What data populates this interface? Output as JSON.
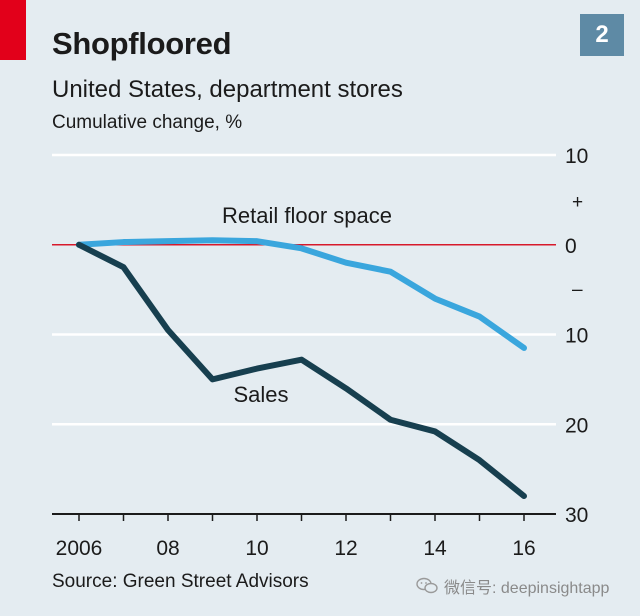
{
  "header": {
    "title": "Shopfloored",
    "badge": "2",
    "subtitle": "United States, department stores",
    "units": "Cumulative change, %"
  },
  "footer": {
    "source": "Source: Green Street Advisors",
    "watermark": "微信号: deepinsightapp"
  },
  "colors": {
    "background": "#e4ecf1",
    "accent": "#e2001a",
    "badge": "#5e8aa5",
    "retail_line": "#3aa6dd",
    "sales_line": "#173f4f",
    "gridline": "#ffffff",
    "zero_line": "#d7192b"
  },
  "chart_data": {
    "type": "line",
    "title": "Shopfloored",
    "subtitle": "United States, department stores",
    "ylabel": "Cumulative change, %",
    "xlabel": "",
    "x": [
      2006,
      2007,
      2008,
      2009,
      2010,
      2011,
      2012,
      2013,
      2014,
      2015,
      2016
    ],
    "xticks": [
      2006,
      2008,
      2010,
      2012,
      2014,
      2016
    ],
    "xtick_labels": [
      "2006",
      "08",
      "10",
      "12",
      "14",
      "16"
    ],
    "ylim": [
      -30,
      10
    ],
    "yticks": [
      10,
      0,
      -10,
      -20,
      -30
    ],
    "ytick_labels": [
      "10",
      "0",
      "10",
      "20",
      "30"
    ],
    "sign_labels": {
      "plus": "+",
      "minus": "–"
    },
    "grid": true,
    "series": [
      {
        "name": "Retail floor space",
        "values": [
          0,
          0.3,
          0.4,
          0.5,
          0.4,
          -0.4,
          -2,
          -3,
          -6,
          -8,
          -11.5
        ]
      },
      {
        "name": "Sales",
        "values": [
          0,
          -2.5,
          -9.5,
          -15,
          -13.8,
          -12.8,
          -16,
          -19.5,
          -20.8,
          -24,
          -28
        ]
      }
    ]
  }
}
